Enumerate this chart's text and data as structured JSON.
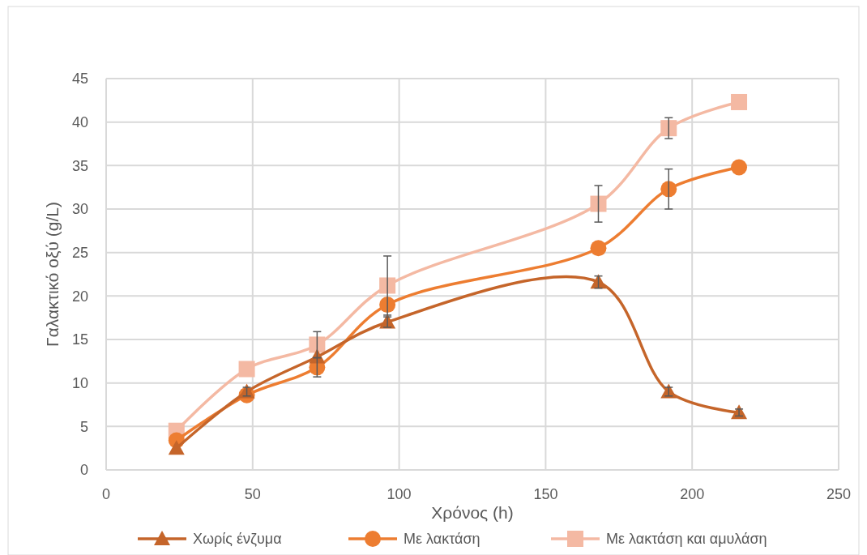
{
  "chart_data": {
    "type": "line",
    "xlabel": "Χρόνος (h)",
    "ylabel": "Γαλακτικό οξύ (g/L)",
    "x": [
      24,
      48,
      72,
      96,
      168,
      192,
      216
    ],
    "series": [
      {
        "name": "Χωρίς ένζυμα",
        "color": "#c5652a",
        "marker": "triangle",
        "values": [
          2.5,
          9,
          13,
          17,
          21.6,
          9,
          6.6
        ],
        "errors": [
          null,
          0.5,
          null,
          0.6,
          0.7,
          0.5,
          0.4
        ]
      },
      {
        "name": "Με λακτάση",
        "color": "#ed7d31",
        "marker": "circle",
        "values": [
          3.4,
          8.6,
          11.8,
          19,
          25.5,
          32.3,
          34.8
        ],
        "errors": [
          null,
          null,
          1.1,
          null,
          null,
          2.3,
          null
        ]
      },
      {
        "name": "Με λακτάση και αμυλάση",
        "color": "#f4b9a3",
        "marker": "square",
        "values": [
          4.5,
          11.6,
          14.4,
          21.2,
          30.6,
          39.3,
          42.3
        ],
        "errors": [
          null,
          null,
          1.5,
          3.4,
          2.1,
          1.2,
          null
        ]
      }
    ],
    "xlim": [
      0,
      250
    ],
    "xticks": [
      0,
      50,
      100,
      150,
      200,
      250
    ],
    "ylim": [
      0,
      45
    ],
    "yticks": [
      0,
      5,
      10,
      15,
      20,
      25,
      30,
      35,
      40,
      45
    ],
    "grid": true,
    "legend": "bottom",
    "line_style": "solid"
  }
}
